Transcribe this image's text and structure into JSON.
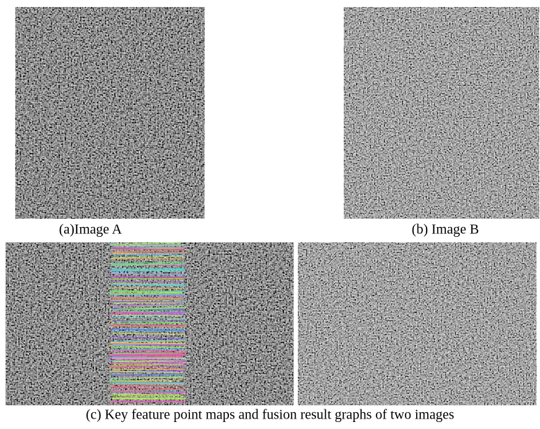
{
  "figure": {
    "panels": [
      {
        "caption": "(a)Image A"
      },
      {
        "caption": "(b) Image B"
      }
    ],
    "caption": "(c) Key feature point maps and fusion result graphs of two images"
  }
}
